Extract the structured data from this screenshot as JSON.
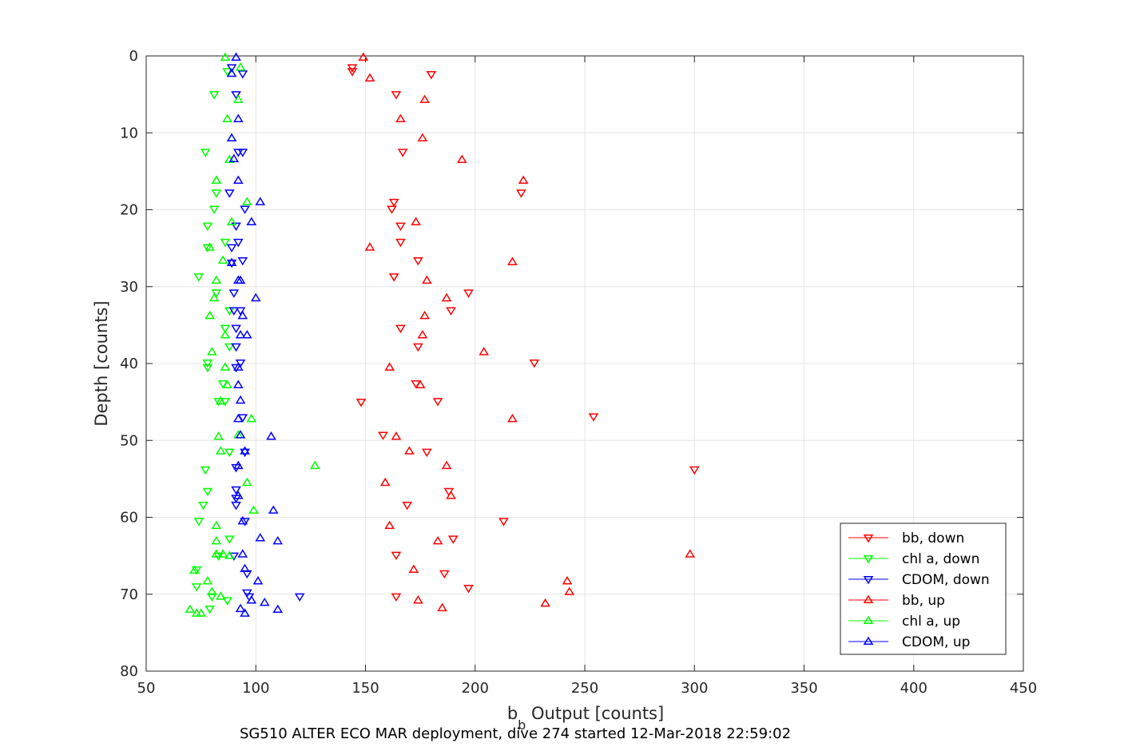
{
  "chart_data": {
    "type": "scatter",
    "title": "",
    "xlabel_main": "b",
    "xlabel_sub": "b",
    "xlabel_rest": " Output [counts]",
    "ylabel": "Depth [counts]",
    "caption": "SG510 ALTER ECO MAR deployment, dive 274 started 12-Mar-2018 22:59:02",
    "xlim": [
      50,
      450
    ],
    "ylim": [
      0,
      80
    ],
    "y_reversed": true,
    "grid": true,
    "legend_position": "bottom-right",
    "x_ticks": [
      50,
      100,
      150,
      200,
      250,
      300,
      350,
      400,
      450
    ],
    "y_ticks": [
      0,
      10,
      20,
      30,
      40,
      50,
      60,
      70,
      80
    ],
    "series": [
      {
        "name": "bb, down",
        "color": "#ff0000",
        "marker": "triangle-down",
        "x": [
          144,
          144,
          180,
          164,
          167,
          221,
          163,
          162,
          166,
          166,
          174,
          163,
          197,
          189,
          166,
          174,
          227,
          173,
          183,
          148,
          254,
          158,
          178,
          300,
          188,
          169,
          213,
          190,
          164,
          186,
          197,
          164
        ],
        "y": [
          1.5,
          2.0,
          2.4,
          5.0,
          12.5,
          17.8,
          19.0,
          19.9,
          22.1,
          24.2,
          26.6,
          28.7,
          30.8,
          33.1,
          35.4,
          37.8,
          39.9,
          42.6,
          44.9,
          45.0,
          46.9,
          49.3,
          51.5,
          53.8,
          56.6,
          58.4,
          60.5,
          62.8,
          64.9,
          67.3,
          69.2,
          70.3
        ]
      },
      {
        "name": "chl a, down",
        "color": "#00ff00",
        "marker": "triangle-down",
        "x": [
          87,
          77,
          81,
          82,
          81,
          78,
          86,
          78,
          74,
          82,
          88,
          86,
          88,
          78,
          78,
          85,
          86,
          83,
          88,
          77,
          78,
          76,
          74,
          88,
          83,
          73,
          73,
          80,
          87,
          79
        ],
        "y": [
          2.0,
          12.5,
          5.0,
          17.8,
          19.9,
          22.1,
          24.2,
          24.9,
          28.7,
          30.8,
          33.1,
          35.4,
          37.8,
          39.9,
          40.5,
          42.6,
          44.9,
          44.9,
          51.5,
          53.8,
          56.6,
          58.4,
          60.5,
          62.8,
          65.0,
          66.8,
          69.0,
          70.3,
          70.8,
          71.9
        ]
      },
      {
        "name": "CDOM, down",
        "color": "#0000ff",
        "marker": "triangle-down",
        "x": [
          89,
          94,
          91,
          92,
          94,
          88,
          95,
          91,
          92,
          89,
          94,
          89,
          90,
          90,
          93,
          91,
          91,
          93,
          91,
          94,
          95,
          91,
          91,
          91,
          91,
          95,
          96,
          97,
          96,
          120,
          90
        ],
        "y": [
          1.5,
          2.3,
          5.0,
          12.5,
          12.5,
          17.8,
          19.9,
          22.1,
          24.2,
          24.9,
          26.6,
          26.9,
          30.8,
          33.1,
          33.1,
          35.4,
          37.8,
          39.9,
          40.5,
          47.0,
          51.5,
          53.5,
          56.4,
          57.5,
          58.4,
          60.5,
          67.3,
          70.3,
          69.8,
          70.3,
          65.0
        ]
      },
      {
        "name": "bb, up",
        "color": "#ff0000",
        "marker": "triangle-up",
        "x": [
          149,
          152,
          177,
          166,
          176,
          194,
          222,
          173,
          152,
          217,
          178,
          187,
          177,
          176,
          204,
          161,
          175,
          217,
          164,
          170,
          187,
          159,
          189,
          298,
          161,
          183,
          172,
          242,
          243,
          232,
          174,
          185
        ],
        "y": [
          0.2,
          2.9,
          5.7,
          8.2,
          10.7,
          13.5,
          16.2,
          21.6,
          24.9,
          26.8,
          29.2,
          31.5,
          33.8,
          36.3,
          38.5,
          40.5,
          42.8,
          47.2,
          49.5,
          51.4,
          53.3,
          55.5,
          57.2,
          64.8,
          61.1,
          63.1,
          66.8,
          68.3,
          69.7,
          71.2,
          70.8,
          71.8
        ]
      },
      {
        "name": "chl a, up",
        "color": "#00ff00",
        "marker": "triangle-up",
        "x": [
          86,
          93,
          92,
          87,
          89,
          88,
          82,
          82,
          96,
          89,
          79,
          85,
          82,
          81,
          79,
          86,
          80,
          86,
          87,
          84,
          98,
          92,
          83,
          84,
          127,
          96,
          99,
          82,
          82,
          82,
          85,
          78,
          80,
          84,
          70,
          75,
          72,
          88,
          73
        ],
        "y": [
          0.2,
          1.5,
          5.7,
          8.2,
          10.7,
          13.5,
          16.2,
          16.2,
          19.0,
          21.6,
          24.9,
          26.6,
          29.2,
          31.5,
          33.8,
          36.3,
          38.5,
          40.5,
          42.8,
          44.9,
          47.2,
          49.3,
          49.5,
          51.4,
          53.3,
          55.5,
          59.1,
          61.1,
          63.1,
          64.8,
          64.8,
          68.3,
          69.7,
          70.3,
          72.0,
          72.5,
          66.9,
          65.0,
          72.5
        ]
      },
      {
        "name": "CDOM, up",
        "color": "#0000ff",
        "marker": "triangle-up",
        "x": [
          91,
          89,
          92,
          89,
          92,
          90,
          89,
          92,
          102,
          98,
          93,
          100,
          94,
          93,
          96,
          92,
          92,
          93,
          92,
          93,
          107,
          95,
          92,
          92,
          108,
          94,
          102,
          110,
          94,
          95,
          101,
          98,
          104,
          110,
          93,
          95
        ],
        "y": [
          0.2,
          2.3,
          8.2,
          10.7,
          16.2,
          13.4,
          26.9,
          29.2,
          19.0,
          21.6,
          29.2,
          31.5,
          33.8,
          36.3,
          36.3,
          40.5,
          42.8,
          44.8,
          47.2,
          49.3,
          49.5,
          51.4,
          53.3,
          57.2,
          59.1,
          60.5,
          62.7,
          63.1,
          64.8,
          66.7,
          68.3,
          70.8,
          71.1,
          72.0,
          71.9,
          72.5
        ]
      }
    ]
  }
}
